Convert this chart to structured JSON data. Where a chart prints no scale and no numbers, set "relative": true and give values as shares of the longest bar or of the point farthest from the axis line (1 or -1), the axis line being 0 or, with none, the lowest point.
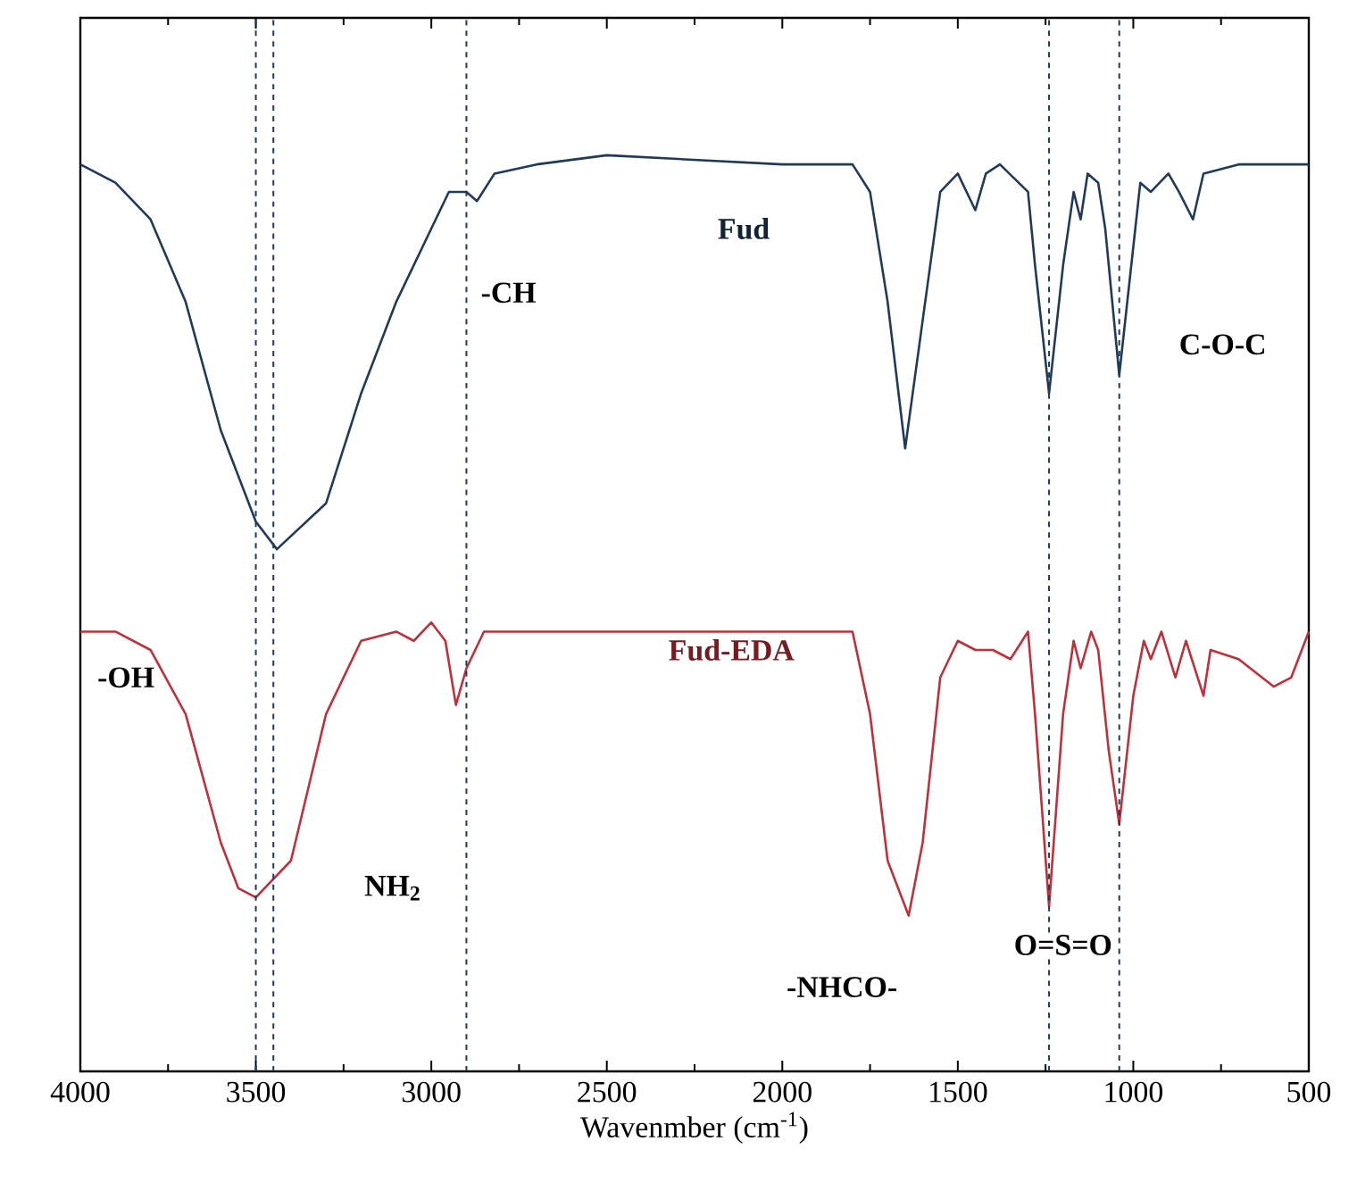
{
  "chart_data": {
    "type": "line",
    "relative": true,
    "xlabel": "Wavenmber (cm$^{-1}$)",
    "xlim": [
      4000,
      500
    ],
    "xticks": [
      4000,
      3500,
      3000,
      2500,
      2000,
      1500,
      1000,
      500
    ],
    "x": [
      4000,
      3900,
      3800,
      3700,
      3600,
      3500,
      3440,
      3300,
      3200,
      3100,
      3000,
      2950,
      2900,
      2870,
      2820,
      2700,
      2500,
      2000,
      1800,
      1750,
      1700,
      1650,
      1600,
      1550,
      1500,
      1450,
      1420,
      1380,
      1300,
      1280,
      1240,
      1200,
      1170,
      1150,
      1130,
      1100,
      1080,
      1040,
      1000,
      980,
      950,
      900,
      870,
      830,
      800,
      700,
      500
    ],
    "series": [
      {
        "name": "Fud",
        "color": "#1f3a5a",
        "values": [
          0.99,
          0.97,
          0.93,
          0.84,
          0.7,
          0.6,
          0.57,
          0.62,
          0.74,
          0.84,
          0.92,
          0.96,
          0.96,
          0.95,
          0.98,
          0.99,
          1.0,
          0.99,
          0.99,
          0.96,
          0.84,
          0.68,
          0.82,
          0.96,
          0.98,
          0.94,
          0.98,
          0.99,
          0.96,
          0.88,
          0.74,
          0.88,
          0.96,
          0.93,
          0.98,
          0.97,
          0.92,
          0.76,
          0.9,
          0.97,
          0.96,
          0.98,
          0.96,
          0.93,
          0.98,
          0.99,
          0.99
        ]
      },
      {
        "name": "Fud-EDA",
        "color": "#c0303a",
        "x": [
          4000,
          3900,
          3800,
          3700,
          3600,
          3550,
          3500,
          3400,
          3300,
          3200,
          3100,
          3050,
          3000,
          2960,
          2930,
          2900,
          2850,
          2800,
          2500,
          2000,
          1800,
          1750,
          1700,
          1640,
          1600,
          1550,
          1500,
          1450,
          1400,
          1350,
          1300,
          1280,
          1240,
          1200,
          1170,
          1150,
          1120,
          1100,
          1070,
          1040,
          1000,
          970,
          950,
          920,
          880,
          850,
          800,
          780,
          700,
          600,
          550,
          500
        ],
        "values": [
          0.48,
          0.48,
          0.46,
          0.39,
          0.25,
          0.2,
          0.19,
          0.23,
          0.39,
          0.47,
          0.48,
          0.47,
          0.49,
          0.47,
          0.4,
          0.44,
          0.48,
          0.48,
          0.48,
          0.48,
          0.48,
          0.39,
          0.23,
          0.17,
          0.25,
          0.43,
          0.47,
          0.46,
          0.46,
          0.45,
          0.48,
          0.39,
          0.18,
          0.39,
          0.47,
          0.44,
          0.48,
          0.46,
          0.35,
          0.27,
          0.41,
          0.47,
          0.45,
          0.48,
          0.43,
          0.47,
          0.41,
          0.46,
          0.45,
          0.42,
          0.43,
          0.48
        ]
      }
    ],
    "ref_lines": [
      {
        "axis": "x",
        "value": 3450,
        "color": "#1f3a5a",
        "line_style": "dashed"
      },
      {
        "axis": "x",
        "value": 3500,
        "color": "#1f3a5a",
        "line_style": "dashed"
      },
      {
        "axis": "x",
        "value": 2900,
        "color": "#1f3a5a",
        "line_style": "dashed"
      },
      {
        "axis": "x",
        "value": 1240,
        "color": "#1f3a5a",
        "line_style": "dashed"
      },
      {
        "axis": "x",
        "value": 1040,
        "color": "#1f3a5a",
        "line_style": "dashed"
      }
    ],
    "annotations": [
      {
        "text": "-CH",
        "x": 2780,
        "y": 0.85
      },
      {
        "text": "-OH",
        "x": 3870,
        "y": 0.43
      },
      {
        "text": "NH$_{2}$",
        "x": 3110,
        "y": 0.2
      },
      "-NHCO-",
      "O=S=O",
      "C-O-C"
    ],
    "line_style": "solid",
    "marker": "none"
  }
}
